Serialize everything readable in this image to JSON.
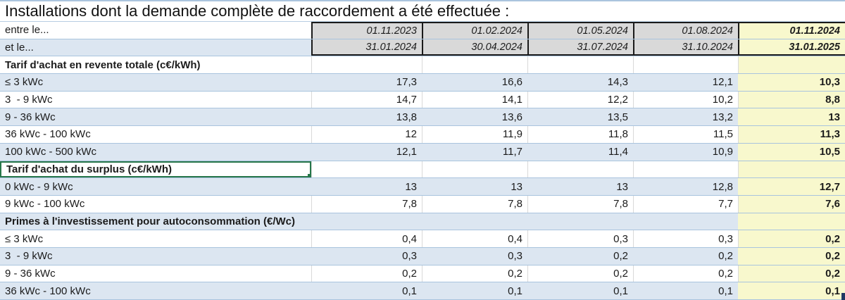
{
  "title": "Installations dont la demande complète de raccordement a été effectuée :",
  "period": {
    "start_label": "entre le...",
    "end_label": "et le...",
    "start_dates": [
      "01.11.2023",
      "01.02.2024",
      "01.05.2024",
      "01.08.2024",
      "01.11.2024"
    ],
    "end_dates": [
      "31.01.2024",
      "30.04.2024",
      "31.07.2024",
      "31.10.2024",
      "31.01.2025"
    ]
  },
  "sections": [
    {
      "header": "Tarif d'achat en revente totale (c€/kWh)",
      "selected": false,
      "rows": [
        {
          "label": "≤ 3 kWc",
          "values": [
            "17,3",
            "16,6",
            "14,3",
            "12,1",
            "10,3"
          ]
        },
        {
          "label": "3  - 9 kWc",
          "values": [
            "14,7",
            "14,1",
            "12,2",
            "10,2",
            "8,8"
          ]
        },
        {
          "label": "9 - 36 kWc",
          "values": [
            "13,8",
            "13,6",
            "13,5",
            "13,2",
            "13"
          ]
        },
        {
          "label": "36 kWc - 100 kWc",
          "values": [
            "12",
            "11,9",
            "11,8",
            "11,5",
            "11,3"
          ]
        },
        {
          "label": "100 kWc - 500 kWc",
          "values": [
            "12,1",
            "11,7",
            "11,4",
            "10,9",
            "10,5"
          ]
        }
      ]
    },
    {
      "header": "Tarif d'achat du surplus (c€/kWh)",
      "selected": true,
      "rows": [
        {
          "label": "0 kWc - 9 kWc",
          "values": [
            "13",
            "13",
            "13",
            "12,8",
            "12,7"
          ]
        },
        {
          "label": "9 kWc - 100 kWc",
          "values": [
            "7,8",
            "7,8",
            "7,8",
            "7,7",
            "7,6"
          ]
        }
      ]
    },
    {
      "header": "Primes à l'investissement pour autoconsommation (€/Wc)",
      "selected": false,
      "rows": [
        {
          "label": "≤ 3 kWc",
          "values": [
            "0,4",
            "0,4",
            "0,3",
            "0,3",
            "0,2"
          ]
        },
        {
          "label": "3  - 9 kWc",
          "values": [
            "0,3",
            "0,3",
            "0,2",
            "0,2",
            "0,2"
          ]
        },
        {
          "label": "9 - 36 kWc",
          "values": [
            "0,2",
            "0,2",
            "0,2",
            "0,2",
            "0,2"
          ]
        },
        {
          "label": "36 kWc - 100 kWc",
          "values": [
            "0,1",
            "0,1",
            "0,1",
            "0,1",
            "0,1"
          ]
        }
      ]
    }
  ],
  "colors": {
    "stripe_blue": "#dce6f1",
    "gridline_blue": "#a9c4de",
    "faint_gridline_gray": "#d9d9d9",
    "header_fill_gray": "#d9d9d9",
    "highlight_column_yellow": "#f8f8cd",
    "header_border_black": "#1a1a1a",
    "selection_green": "#26764a",
    "corner_artifact_navy": "#203864"
  }
}
